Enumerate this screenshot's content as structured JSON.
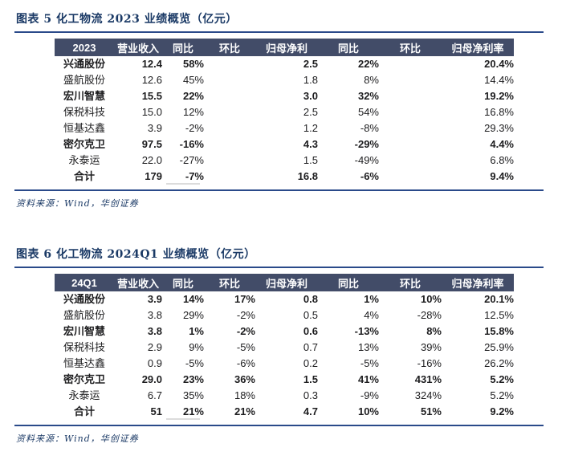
{
  "colors": {
    "title_navy": "#1b3a66",
    "rule_blue": "#2a4a8a",
    "header_bg": "#424c68",
    "header_text": "#ffffff",
    "total_row_underline_gray": "#dcdcdc"
  },
  "tables": [
    {
      "title": "图表 5 化工物流 2023 业绩概览（亿元）",
      "source": "资料来源：Wind，华创证券",
      "headers": [
        "2023",
        "营业收入",
        "同比",
        "环比",
        "归母净利",
        "同比",
        "环比",
        "归母净利率"
      ],
      "rows": [
        {
          "name": "兴通股份",
          "bold": true,
          "values": [
            "12.4",
            "58%",
            "",
            "2.5",
            "22%",
            "",
            "20.4%"
          ]
        },
        {
          "name": "盛航股份",
          "bold": false,
          "values": [
            "12.6",
            "45%",
            "",
            "1.8",
            "8%",
            "",
            "14.4%"
          ]
        },
        {
          "name": "宏川智慧",
          "bold": true,
          "values": [
            "15.5",
            "22%",
            "",
            "3.0",
            "32%",
            "",
            "19.2%"
          ]
        },
        {
          "name": "保税科技",
          "bold": false,
          "values": [
            "15.0",
            "12%",
            "",
            "2.5",
            "54%",
            "",
            "16.8%"
          ]
        },
        {
          "name": "恒基达鑫",
          "bold": false,
          "values": [
            "3.9",
            "-2%",
            "",
            "1.2",
            "-8%",
            "",
            "29.3%"
          ]
        },
        {
          "name": "密尔克卫",
          "bold": true,
          "values": [
            "97.5",
            "-16%",
            "",
            "4.3",
            "-29%",
            "",
            "4.4%"
          ]
        },
        {
          "name": "永泰运",
          "bold": false,
          "values": [
            "22.0",
            "-27%",
            "",
            "1.5",
            "-49%",
            "",
            "6.8%"
          ]
        },
        {
          "name": "合计",
          "bold": true,
          "underline_col": 2,
          "values": [
            "179",
            "-7%",
            "",
            "16.8",
            "-6%",
            "",
            "9.4%"
          ]
        }
      ]
    },
    {
      "title": "图表 6 化工物流 2024Q1 业绩概览（亿元）",
      "source": "资料来源：Wind，华创证券",
      "headers": [
        "24Q1",
        "营业收入",
        "同比",
        "环比",
        "归母净利",
        "同比",
        "环比",
        "归母净利率"
      ],
      "rows": [
        {
          "name": "兴通股份",
          "bold": true,
          "values": [
            "3.9",
            "14%",
            "17%",
            "0.8",
            "1%",
            "10%",
            "20.1%"
          ]
        },
        {
          "name": "盛航股份",
          "bold": false,
          "values": [
            "3.8",
            "29%",
            "-2%",
            "0.5",
            "4%",
            "-28%",
            "12.5%"
          ]
        },
        {
          "name": "宏川智慧",
          "bold": true,
          "values": [
            "3.8",
            "1%",
            "-2%",
            "0.6",
            "-13%",
            "8%",
            "15.8%"
          ]
        },
        {
          "name": "保税科技",
          "bold": false,
          "values": [
            "2.9",
            "9%",
            "-5%",
            "0.7",
            "13%",
            "39%",
            "25.9%"
          ]
        },
        {
          "name": "恒基达鑫",
          "bold": false,
          "values": [
            "0.9",
            "-5%",
            "-6%",
            "0.2",
            "-5%",
            "-16%",
            "26.2%"
          ]
        },
        {
          "name": "密尔克卫",
          "bold": true,
          "values": [
            "29.0",
            "23%",
            "36%",
            "1.5",
            "41%",
            "431%",
            "5.2%"
          ]
        },
        {
          "name": "永泰运",
          "bold": false,
          "values": [
            "6.7",
            "35%",
            "18%",
            "0.3",
            "-9%",
            "324%",
            "5.2%"
          ]
        },
        {
          "name": "合计",
          "bold": true,
          "underline_col": 2,
          "values": [
            "51",
            "21%",
            "21%",
            "4.7",
            "10%",
            "51%",
            "9.2%"
          ]
        }
      ]
    }
  ]
}
